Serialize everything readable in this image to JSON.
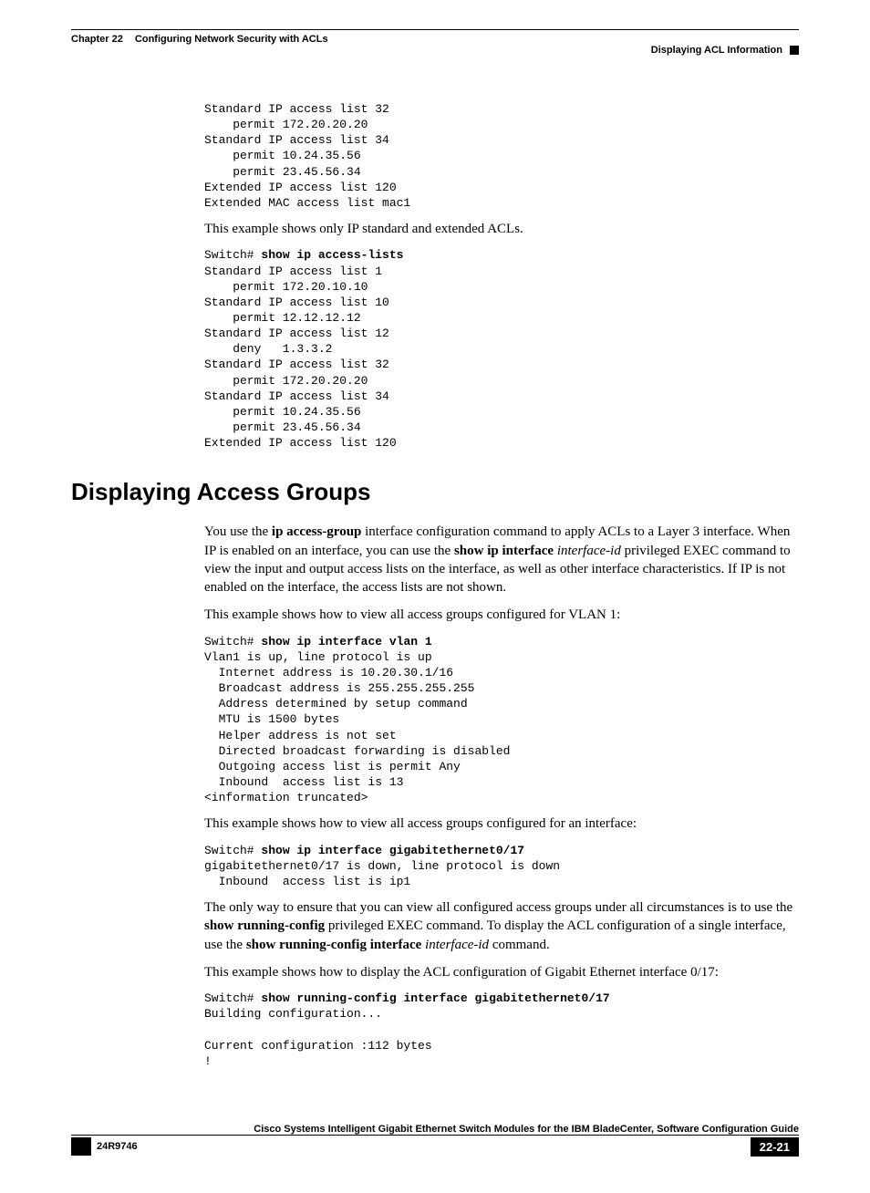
{
  "header": {
    "chapter_label": "Chapter 22",
    "chapter_title": "Configuring Network Security with ACLs",
    "section_title": "Displaying ACL Information"
  },
  "code1": "Standard IP access list 32\n    permit 172.20.20.20\nStandard IP access list 34\n    permit 10.24.35.56\n    permit 23.45.56.34\nExtended IP access list 120\nExtended MAC access list mac1",
  "para1": "This example shows only IP standard and extended ACLs.",
  "code2_prompt": "Switch# ",
  "code2_cmd": "show ip access-lists",
  "code2_body": "Standard IP access list 1\n    permit 172.20.10.10\nStandard IP access list 10\n    permit 12.12.12.12\nStandard IP access list 12\n    deny   1.3.3.2\nStandard IP access list 32\n    permit 172.20.20.20\nStandard IP access list 34\n    permit 10.24.35.56\n    permit 23.45.56.34\nExtended IP access list 120",
  "h2": "Displaying Access Groups",
  "para2": {
    "t1": "You use the ",
    "b1": "ip access-group",
    "t2": " interface configuration command to apply ACLs to a Layer 3 interface. When IP is enabled on an interface, you can use the ",
    "b2": "show ip interface",
    "t3": " ",
    "i1": "interface-id",
    "t4": " privileged EXEC command to view the input and output access lists on the interface, as well as other interface characteristics. If IP is not enabled on the interface, the access lists are not shown."
  },
  "para3": "This example shows how to view all access groups configured for VLAN 1:",
  "code3_prompt": "Switch# ",
  "code3_cmd": "show ip interface vlan 1",
  "code3_body": "Vlan1 is up, line protocol is up\n  Internet address is 10.20.30.1/16\n  Broadcast address is 255.255.255.255\n  Address determined by setup command\n  MTU is 1500 bytes\n  Helper address is not set\n  Directed broadcast forwarding is disabled\n  Outgoing access list is permit Any\n  Inbound  access list is 13\n<information truncated>",
  "para4": "This example shows how to view all access groups configured for an interface:",
  "code4_prompt": "Switch# ",
  "code4_cmd": "show ip interface gigabitethernet0/17",
  "code4_body": "gigabitethernet0/17 is down, line protocol is down\n  Inbound  access list is ip1",
  "para5": {
    "t1": "The only way to ensure that you can view all configured access groups under all circumstances is to use the ",
    "b1": "show running-config",
    "t2": " privileged EXEC command. To display the ACL configuration of a single interface, use the ",
    "b2": "show running-config interface",
    "t3": " ",
    "i1": "interface-id",
    "t4": " command."
  },
  "para6": "This example shows how to display the ACL configuration of Gigabit Ethernet interface 0/17:",
  "code5_prompt": "Switch# ",
  "code5_cmd": "show running-config interface gigabitethernet0/17",
  "code5_body": "Building configuration...\n\nCurrent configuration :112 bytes\n!",
  "footer": {
    "book_title": "Cisco Systems Intelligent Gigabit Ethernet Switch Modules for the IBM BladeCenter, Software Configuration Guide",
    "doc_number": "24R9746",
    "page_number": "22-21"
  }
}
